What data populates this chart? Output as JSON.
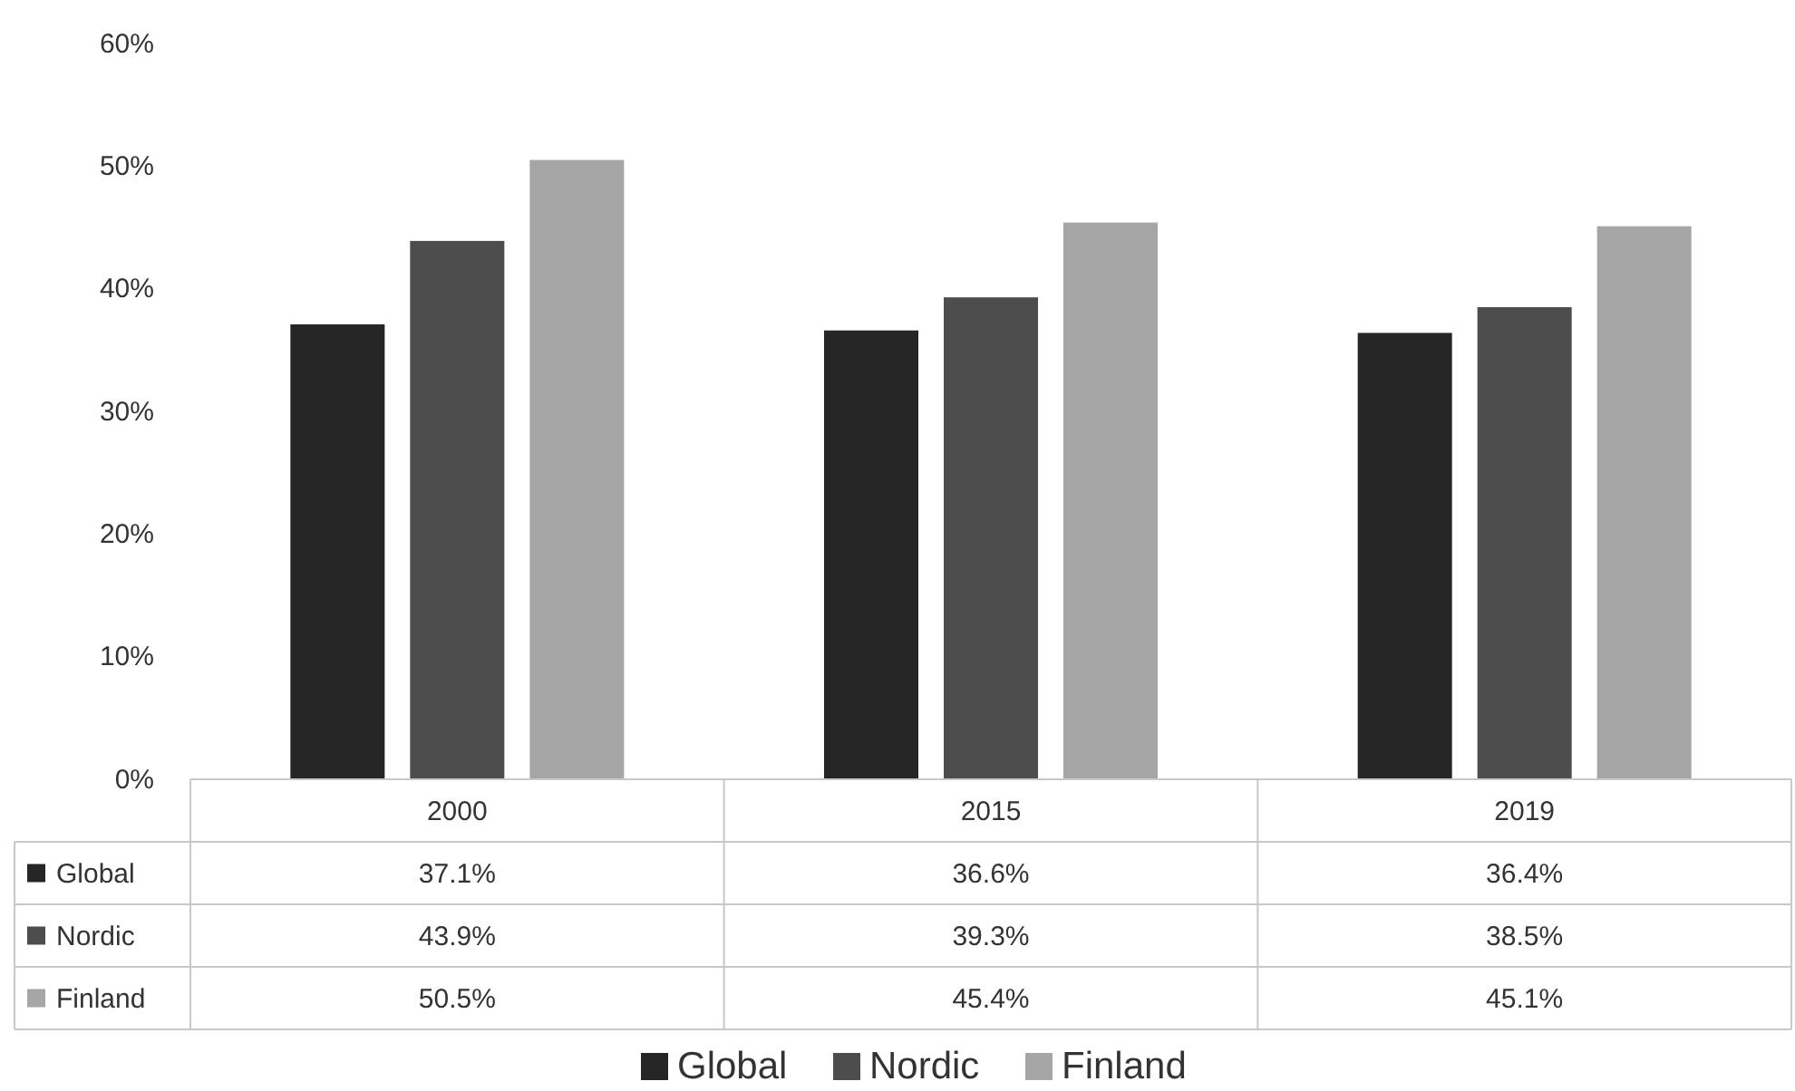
{
  "chart_data": {
    "type": "bar",
    "categories": [
      "2000",
      "2015",
      "2019"
    ],
    "series": [
      {
        "name": "Global",
        "color": "#262626",
        "values": [
          37.1,
          36.6,
          36.4
        ],
        "value_labels": [
          "37.1%",
          "36.6%",
          "36.4%"
        ]
      },
      {
        "name": "Nordic",
        "color": "#4d4d4d",
        "values": [
          43.9,
          39.3,
          38.5
        ],
        "value_labels": [
          "43.9%",
          "39.3%",
          "38.5%"
        ]
      },
      {
        "name": "Finland",
        "color": "#a6a6a6",
        "values": [
          50.5,
          45.4,
          45.1
        ],
        "value_labels": [
          "50.5%",
          "45.4%",
          "45.1%"
        ]
      }
    ],
    "ylim": [
      0,
      60
    ],
    "yticks": [
      {
        "value": 0,
        "label": "0%"
      },
      {
        "value": 10,
        "label": "10%"
      },
      {
        "value": 20,
        "label": "20%"
      },
      {
        "value": 30,
        "label": "30%"
      },
      {
        "value": 40,
        "label": "40%"
      },
      {
        "value": 50,
        "label": "50%"
      },
      {
        "value": 60,
        "label": "60%"
      }
    ],
    "grid": false,
    "legend": "bottom"
  }
}
